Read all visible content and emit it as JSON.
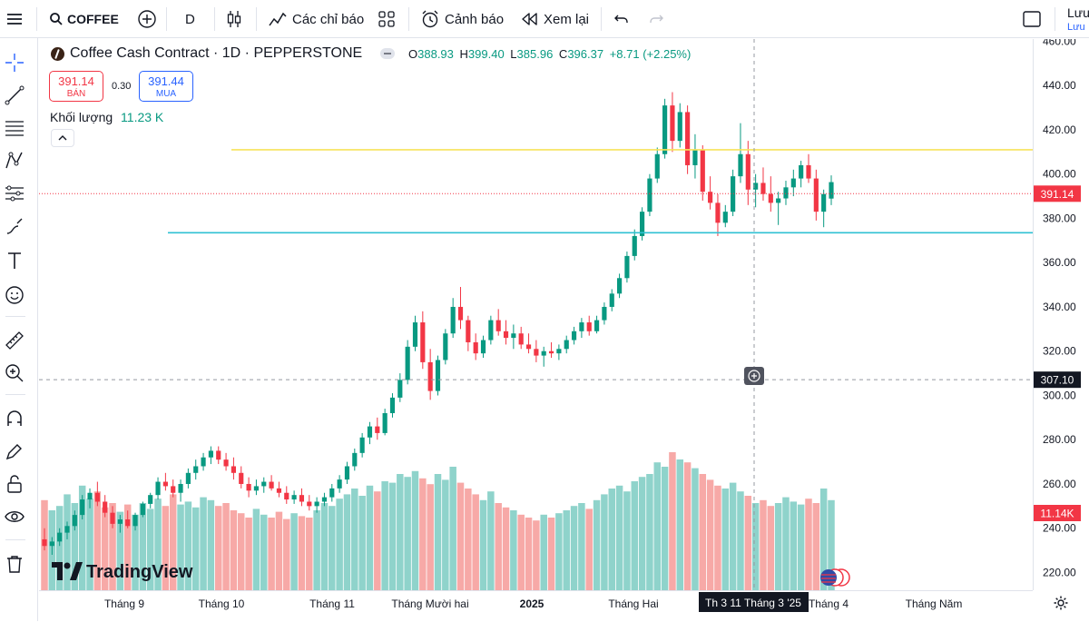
{
  "topbar": {
    "symbol": "COFFEE",
    "interval": "D",
    "indicators_label": "Các chỉ báo",
    "alert_label": "Cảnh báo",
    "replay_label": "Xem lại",
    "save_label": "Lưu",
    "save_sub": "Lưu"
  },
  "legend": {
    "title": "Coffee Cash Contract · 1D · PEPPERSTONE",
    "open_label": "O",
    "open": "388.93",
    "high_label": "H",
    "high": "399.40",
    "low_label": "L",
    "low": "385.96",
    "close_label": "C",
    "close": "396.37",
    "change": "+8.71 (+2.25%)",
    "sell_price": "391.14",
    "sell_label": "BÁN",
    "spread": "0.30",
    "buy_price": "391.44",
    "buy_label": "MUA",
    "volume_label": "Khối lượng",
    "volume_value": "11.23 K"
  },
  "watermark": "TradingView",
  "colors": {
    "up": "#089981",
    "down": "#f23645",
    "vol_up": "#8fd3cb",
    "vol_down": "#f7a9a7",
    "yellow_line": "#f7e35a",
    "cyan_line": "#2fc1d3",
    "accent": "#2962ff"
  },
  "chart_data": {
    "type": "candlestick",
    "symbol": "Coffee Cash Contract · 1D · PEPPERSTONE",
    "y_ticks": [
      "460.00",
      "440.00",
      "420.00",
      "400.00",
      "380.00",
      "360.00",
      "340.00",
      "320.00",
      "300.00",
      "280.00",
      "260.00",
      "240.00",
      "220.00"
    ],
    "ylim": [
      212,
      461
    ],
    "x_ticks": [
      "Tháng 9",
      "Tháng 10",
      "Tháng 11",
      "Tháng Mười hai",
      "2025",
      "Tháng Hai",
      "Tháng 4",
      "Tháng Năm"
    ],
    "current_price_label": "391.14",
    "crosshair_price_label": "307.10",
    "crosshair_date_label": "Th 3 11 Tháng 3 '25",
    "volume_label": "11.14K",
    "horizontal_lines": [
      411,
      373.5
    ],
    "candles": [
      {
        "o": 235,
        "h": 240,
        "l": 230,
        "c": 232
      },
      {
        "o": 232,
        "h": 236,
        "l": 228,
        "c": 234
      },
      {
        "o": 234,
        "h": 240,
        "l": 232,
        "c": 238
      },
      {
        "o": 238,
        "h": 243,
        "l": 235,
        "c": 241
      },
      {
        "o": 241,
        "h": 248,
        "l": 239,
        "c": 246
      },
      {
        "o": 246,
        "h": 255,
        "l": 244,
        "c": 253
      },
      {
        "o": 253,
        "h": 258,
        "l": 249,
        "c": 256
      },
      {
        "o": 256,
        "h": 261,
        "l": 250,
        "c": 252
      },
      {
        "o": 252,
        "h": 255,
        "l": 245,
        "c": 247
      },
      {
        "o": 247,
        "h": 250,
        "l": 240,
        "c": 242
      },
      {
        "o": 242,
        "h": 246,
        "l": 238,
        "c": 244
      },
      {
        "o": 244,
        "h": 248,
        "l": 240,
        "c": 241
      },
      {
        "o": 241,
        "h": 247,
        "l": 239,
        "c": 246
      },
      {
        "o": 246,
        "h": 252,
        "l": 245,
        "c": 251
      },
      {
        "o": 251,
        "h": 256,
        "l": 249,
        "c": 255
      },
      {
        "o": 255,
        "h": 263,
        "l": 253,
        "c": 261
      },
      {
        "o": 261,
        "h": 265,
        "l": 257,
        "c": 259
      },
      {
        "o": 259,
        "h": 262,
        "l": 254,
        "c": 256
      },
      {
        "o": 256,
        "h": 262,
        "l": 252,
        "c": 260
      },
      {
        "o": 260,
        "h": 267,
        "l": 258,
        "c": 265
      },
      {
        "o": 265,
        "h": 271,
        "l": 262,
        "c": 268
      },
      {
        "o": 268,
        "h": 274,
        "l": 266,
        "c": 272
      },
      {
        "o": 272,
        "h": 277,
        "l": 269,
        "c": 275
      },
      {
        "o": 275,
        "h": 277,
        "l": 269,
        "c": 271
      },
      {
        "o": 271,
        "h": 274,
        "l": 266,
        "c": 268
      },
      {
        "o": 268,
        "h": 272,
        "l": 262,
        "c": 265
      },
      {
        "o": 265,
        "h": 268,
        "l": 258,
        "c": 260
      },
      {
        "o": 260,
        "h": 263,
        "l": 254,
        "c": 257
      },
      {
        "o": 257,
        "h": 262,
        "l": 255,
        "c": 259
      },
      {
        "o": 259,
        "h": 263,
        "l": 256,
        "c": 261
      },
      {
        "o": 261,
        "h": 264,
        "l": 257,
        "c": 258
      },
      {
        "o": 258,
        "h": 261,
        "l": 254,
        "c": 256
      },
      {
        "o": 256,
        "h": 259,
        "l": 251,
        "c": 253
      },
      {
        "o": 253,
        "h": 257,
        "l": 251,
        "c": 255
      },
      {
        "o": 255,
        "h": 258,
        "l": 250,
        "c": 252
      },
      {
        "o": 252,
        "h": 255,
        "l": 248,
        "c": 250
      },
      {
        "o": 250,
        "h": 254,
        "l": 247,
        "c": 252
      },
      {
        "o": 252,
        "h": 256,
        "l": 250,
        "c": 254
      },
      {
        "o": 254,
        "h": 260,
        "l": 252,
        "c": 258
      },
      {
        "o": 258,
        "h": 264,
        "l": 256,
        "c": 262
      },
      {
        "o": 262,
        "h": 270,
        "l": 260,
        "c": 268
      },
      {
        "o": 268,
        "h": 276,
        "l": 266,
        "c": 274
      },
      {
        "o": 274,
        "h": 283,
        "l": 272,
        "c": 281
      },
      {
        "o": 281,
        "h": 288,
        "l": 278,
        "c": 286
      },
      {
        "o": 286,
        "h": 290,
        "l": 280,
        "c": 283
      },
      {
        "o": 283,
        "h": 294,
        "l": 282,
        "c": 292
      },
      {
        "o": 292,
        "h": 301,
        "l": 290,
        "c": 299
      },
      {
        "o": 299,
        "h": 310,
        "l": 297,
        "c": 307
      },
      {
        "o": 307,
        "h": 325,
        "l": 305,
        "c": 322
      },
      {
        "o": 322,
        "h": 336,
        "l": 320,
        "c": 333
      },
      {
        "o": 333,
        "h": 338,
        "l": 312,
        "c": 315
      },
      {
        "o": 315,
        "h": 321,
        "l": 298,
        "c": 302
      },
      {
        "o": 302,
        "h": 318,
        "l": 300,
        "c": 316
      },
      {
        "o": 316,
        "h": 330,
        "l": 314,
        "c": 328
      },
      {
        "o": 328,
        "h": 344,
        "l": 326,
        "c": 340
      },
      {
        "o": 340,
        "h": 349,
        "l": 330,
        "c": 334
      },
      {
        "o": 334,
        "h": 336,
        "l": 320,
        "c": 324
      },
      {
        "o": 324,
        "h": 328,
        "l": 316,
        "c": 319
      },
      {
        "o": 319,
        "h": 327,
        "l": 317,
        "c": 325
      },
      {
        "o": 325,
        "h": 336,
        "l": 323,
        "c": 334
      },
      {
        "o": 334,
        "h": 339,
        "l": 327,
        "c": 329
      },
      {
        "o": 329,
        "h": 334,
        "l": 323,
        "c": 326
      },
      {
        "o": 326,
        "h": 332,
        "l": 321,
        "c": 328
      },
      {
        "o": 328,
        "h": 331,
        "l": 321,
        "c": 323
      },
      {
        "o": 323,
        "h": 328,
        "l": 319,
        "c": 321
      },
      {
        "o": 321,
        "h": 325,
        "l": 315,
        "c": 318
      },
      {
        "o": 318,
        "h": 322,
        "l": 313,
        "c": 320
      },
      {
        "o": 320,
        "h": 324,
        "l": 317,
        "c": 319
      },
      {
        "o": 319,
        "h": 323,
        "l": 316,
        "c": 321
      },
      {
        "o": 321,
        "h": 327,
        "l": 319,
        "c": 325
      },
      {
        "o": 325,
        "h": 331,
        "l": 323,
        "c": 329
      },
      {
        "o": 329,
        "h": 335,
        "l": 326,
        "c": 333
      },
      {
        "o": 333,
        "h": 336,
        "l": 327,
        "c": 329
      },
      {
        "o": 329,
        "h": 336,
        "l": 328,
        "c": 334
      },
      {
        "o": 334,
        "h": 342,
        "l": 332,
        "c": 340
      },
      {
        "o": 340,
        "h": 348,
        "l": 338,
        "c": 346
      },
      {
        "o": 346,
        "h": 355,
        "l": 344,
        "c": 353
      },
      {
        "o": 353,
        "h": 365,
        "l": 351,
        "c": 363
      },
      {
        "o": 363,
        "h": 375,
        "l": 361,
        "c": 372
      },
      {
        "o": 372,
        "h": 385,
        "l": 370,
        "c": 383
      },
      {
        "o": 383,
        "h": 400,
        "l": 381,
        "c": 398
      },
      {
        "o": 398,
        "h": 412,
        "l": 396,
        "c": 409
      },
      {
        "o": 409,
        "h": 434,
        "l": 407,
        "c": 431
      },
      {
        "o": 431,
        "h": 437,
        "l": 410,
        "c": 415
      },
      {
        "o": 415,
        "h": 432,
        "l": 412,
        "c": 428
      },
      {
        "o": 428,
        "h": 431,
        "l": 400,
        "c": 404
      },
      {
        "o": 404,
        "h": 418,
        "l": 398,
        "c": 411
      },
      {
        "o": 411,
        "h": 413,
        "l": 388,
        "c": 392
      },
      {
        "o": 392,
        "h": 399,
        "l": 384,
        "c": 387
      },
      {
        "o": 387,
        "h": 391,
        "l": 372,
        "c": 378
      },
      {
        "o": 378,
        "h": 386,
        "l": 376,
        "c": 383
      },
      {
        "o": 383,
        "h": 402,
        "l": 381,
        "c": 399
      },
      {
        "o": 399,
        "h": 423,
        "l": 396,
        "c": 409
      },
      {
        "o": 409,
        "h": 415,
        "l": 386,
        "c": 393
      },
      {
        "o": 393,
        "h": 400,
        "l": 385,
        "c": 396
      },
      {
        "o": 396,
        "h": 403,
        "l": 388,
        "c": 391
      },
      {
        "o": 391,
        "h": 399,
        "l": 383,
        "c": 387
      },
      {
        "o": 387,
        "h": 392,
        "l": 377,
        "c": 389
      },
      {
        "o": 389,
        "h": 397,
        "l": 386,
        "c": 394
      },
      {
        "o": 394,
        "h": 402,
        "l": 390,
        "c": 398
      },
      {
        "o": 398,
        "h": 406,
        "l": 394,
        "c": 404
      },
      {
        "o": 404,
        "h": 409,
        "l": 396,
        "c": 398
      },
      {
        "o": 398,
        "h": 402,
        "l": 379,
        "c": 383
      },
      {
        "o": 383,
        "h": 393,
        "l": 376,
        "c": 391
      },
      {
        "o": 388.93,
        "h": 399.4,
        "l": 385.96,
        "c": 396.37
      }
    ],
    "volume": [
      0.62,
      0.55,
      0.58,
      0.66,
      0.6,
      0.72,
      0.63,
      0.68,
      0.57,
      0.6,
      0.54,
      0.59,
      0.52,
      0.6,
      0.56,
      0.63,
      0.58,
      0.66,
      0.59,
      0.61,
      0.57,
      0.64,
      0.62,
      0.58,
      0.6,
      0.55,
      0.53,
      0.5,
      0.56,
      0.52,
      0.5,
      0.54,
      0.49,
      0.53,
      0.51,
      0.5,
      0.55,
      0.6,
      0.58,
      0.63,
      0.66,
      0.7,
      0.65,
      0.72,
      0.68,
      0.75,
      0.74,
      0.8,
      0.78,
      0.82,
      0.77,
      0.73,
      0.8,
      0.76,
      0.85,
      0.74,
      0.7,
      0.66,
      0.62,
      0.68,
      0.6,
      0.57,
      0.55,
      0.52,
      0.5,
      0.48,
      0.52,
      0.5,
      0.53,
      0.55,
      0.58,
      0.6,
      0.56,
      0.62,
      0.66,
      0.7,
      0.72,
      0.68,
      0.75,
      0.78,
      0.8,
      0.88,
      0.85,
      0.95,
      0.9,
      0.88,
      0.84,
      0.8,
      0.76,
      0.72,
      0.7,
      0.74,
      0.68,
      0.65,
      0.6,
      0.62,
      0.58,
      0.6,
      0.64,
      0.61,
      0.59,
      0.63,
      0.6,
      0.7,
      0.62
    ]
  }
}
